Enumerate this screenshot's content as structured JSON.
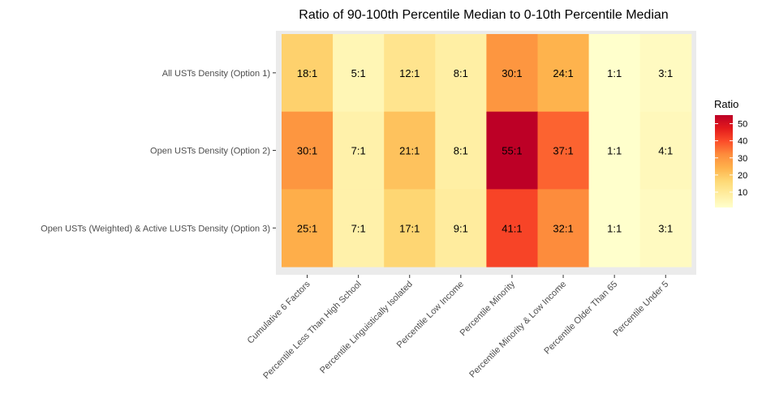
{
  "chart_data": {
    "type": "heatmap",
    "title": "Ratio of 90-100th Percentile Median to 0-10th Percentile Median",
    "xlabel": "",
    "ylabel": "",
    "x_categories": [
      "Cumulative 6 Factors",
      "Percentile Less Than High School",
      "Percentile Linguistically Isolated",
      "Percentile Low Income",
      "Percentile Minority",
      "Percentile Minority & Low Income",
      "Percentile Older Than 65",
      "Percentile Under 5"
    ],
    "y_categories": [
      "All USTs Density (Option 1)",
      "Open USTs Density (Option 2)",
      "Open USTs (Weighted) & Active LUSTs Density (Option 3)"
    ],
    "values": [
      [
        18,
        5,
        12,
        8,
        30,
        24,
        1,
        3
      ],
      [
        30,
        7,
        21,
        8,
        55,
        37,
        1,
        4
      ],
      [
        25,
        7,
        17,
        9,
        41,
        32,
        1,
        3
      ]
    ],
    "cell_labels": [
      [
        "18:1",
        "5:1",
        "12:1",
        "8:1",
        "30:1",
        "24:1",
        "1:1",
        "3:1"
      ],
      [
        "30:1",
        "7:1",
        "21:1",
        "8:1",
        "55:1",
        "37:1",
        "1:1",
        "4:1"
      ],
      [
        "25:1",
        "7:1",
        "17:1",
        "9:1",
        "41:1",
        "32:1",
        "1:1",
        "3:1"
      ]
    ],
    "legend": {
      "title": "Ratio",
      "ticks": [
        "10",
        "20",
        "30",
        "40",
        "50"
      ],
      "tick_values": [
        10,
        20,
        30,
        40,
        50
      ],
      "range": [
        1,
        55
      ],
      "colors": [
        "#ffffcc",
        "#ffeda0",
        "#fed976",
        "#feb24c",
        "#fd8d3c",
        "#fc4e2a",
        "#e31a1c",
        "#bd0026"
      ]
    },
    "panel_background": "#ebebeb"
  }
}
